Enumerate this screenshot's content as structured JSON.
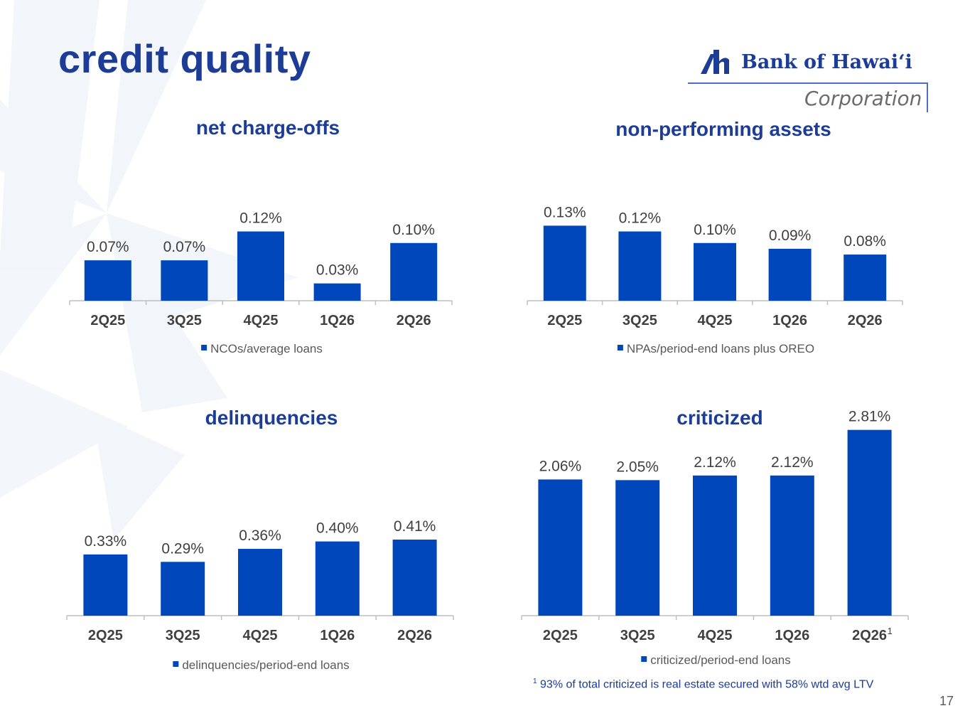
{
  "slide": {
    "title": "credit quality",
    "page_number": "17",
    "footnote_marker": "1",
    "footnote_text": "93% of total criticized is real estate secured with 58% wtd avg LTV"
  },
  "logo": {
    "name": "Bank of Hawaiʻi",
    "subtitle": "Corporation",
    "icon": "bank-of-hawaii-mark",
    "color": "#1c3c96"
  },
  "colors": {
    "bar": "#0047bb",
    "title": "#1c3c96",
    "axis": "#bfbfbf",
    "data_label": "#404040",
    "tick_label": "#404040"
  },
  "chart_data": [
    {
      "type": "bar",
      "title": "net charge-offs",
      "categories": [
        "2Q25",
        "3Q25",
        "4Q25",
        "1Q26",
        "2Q26"
      ],
      "series": [
        {
          "name": "NCOs/average loans",
          "values": [
            0.07,
            0.07,
            0.12,
            0.03,
            0.1
          ]
        }
      ],
      "data_labels": [
        "0.07%",
        "0.07%",
        "0.12%",
        "0.03%",
        "0.10%"
      ],
      "ylim": [
        0,
        0.25
      ],
      "grid": false,
      "legend": "bottom"
    },
    {
      "type": "bar",
      "title": "non-performing assets",
      "categories": [
        "2Q25",
        "3Q25",
        "4Q25",
        "1Q26",
        "2Q26"
      ],
      "series": [
        {
          "name": "NPAs/period-end loans plus OREO",
          "values": [
            0.13,
            0.12,
            0.1,
            0.09,
            0.08
          ]
        }
      ],
      "data_labels": [
        "0.13%",
        "0.12%",
        "0.10%",
        "0.09%",
        "0.08%"
      ],
      "ylim": [
        0,
        0.25
      ],
      "grid": false,
      "legend": "bottom"
    },
    {
      "type": "bar",
      "title": "delinquencies",
      "categories": [
        "2Q25",
        "3Q25",
        "4Q25",
        "1Q26",
        "2Q26"
      ],
      "series": [
        {
          "name": "delinquencies/period-end loans",
          "values": [
            0.33,
            0.29,
            0.36,
            0.4,
            0.41
          ]
        }
      ],
      "data_labels": [
        "0.33%",
        "0.29%",
        "0.36%",
        "0.40%",
        "0.41%"
      ],
      "ylim": [
        0,
        1.0
      ],
      "grid": false,
      "legend": "bottom"
    },
    {
      "type": "bar",
      "title": "criticized",
      "categories": [
        "2Q25",
        "3Q25",
        "4Q25",
        "1Q26",
        "2Q26"
      ],
      "series": [
        {
          "name": "criticized/period-end loans",
          "values": [
            2.06,
            2.05,
            2.12,
            2.12,
            2.81
          ]
        }
      ],
      "data_labels": [
        "2.06%",
        "2.05%",
        "2.12%",
        "2.12%",
        "2.81%"
      ],
      "ylim": [
        0,
        3.0
      ],
      "grid": false,
      "legend": "bottom",
      "annotations": [
        {
          "category": "2Q26",
          "text": "1"
        }
      ]
    }
  ]
}
